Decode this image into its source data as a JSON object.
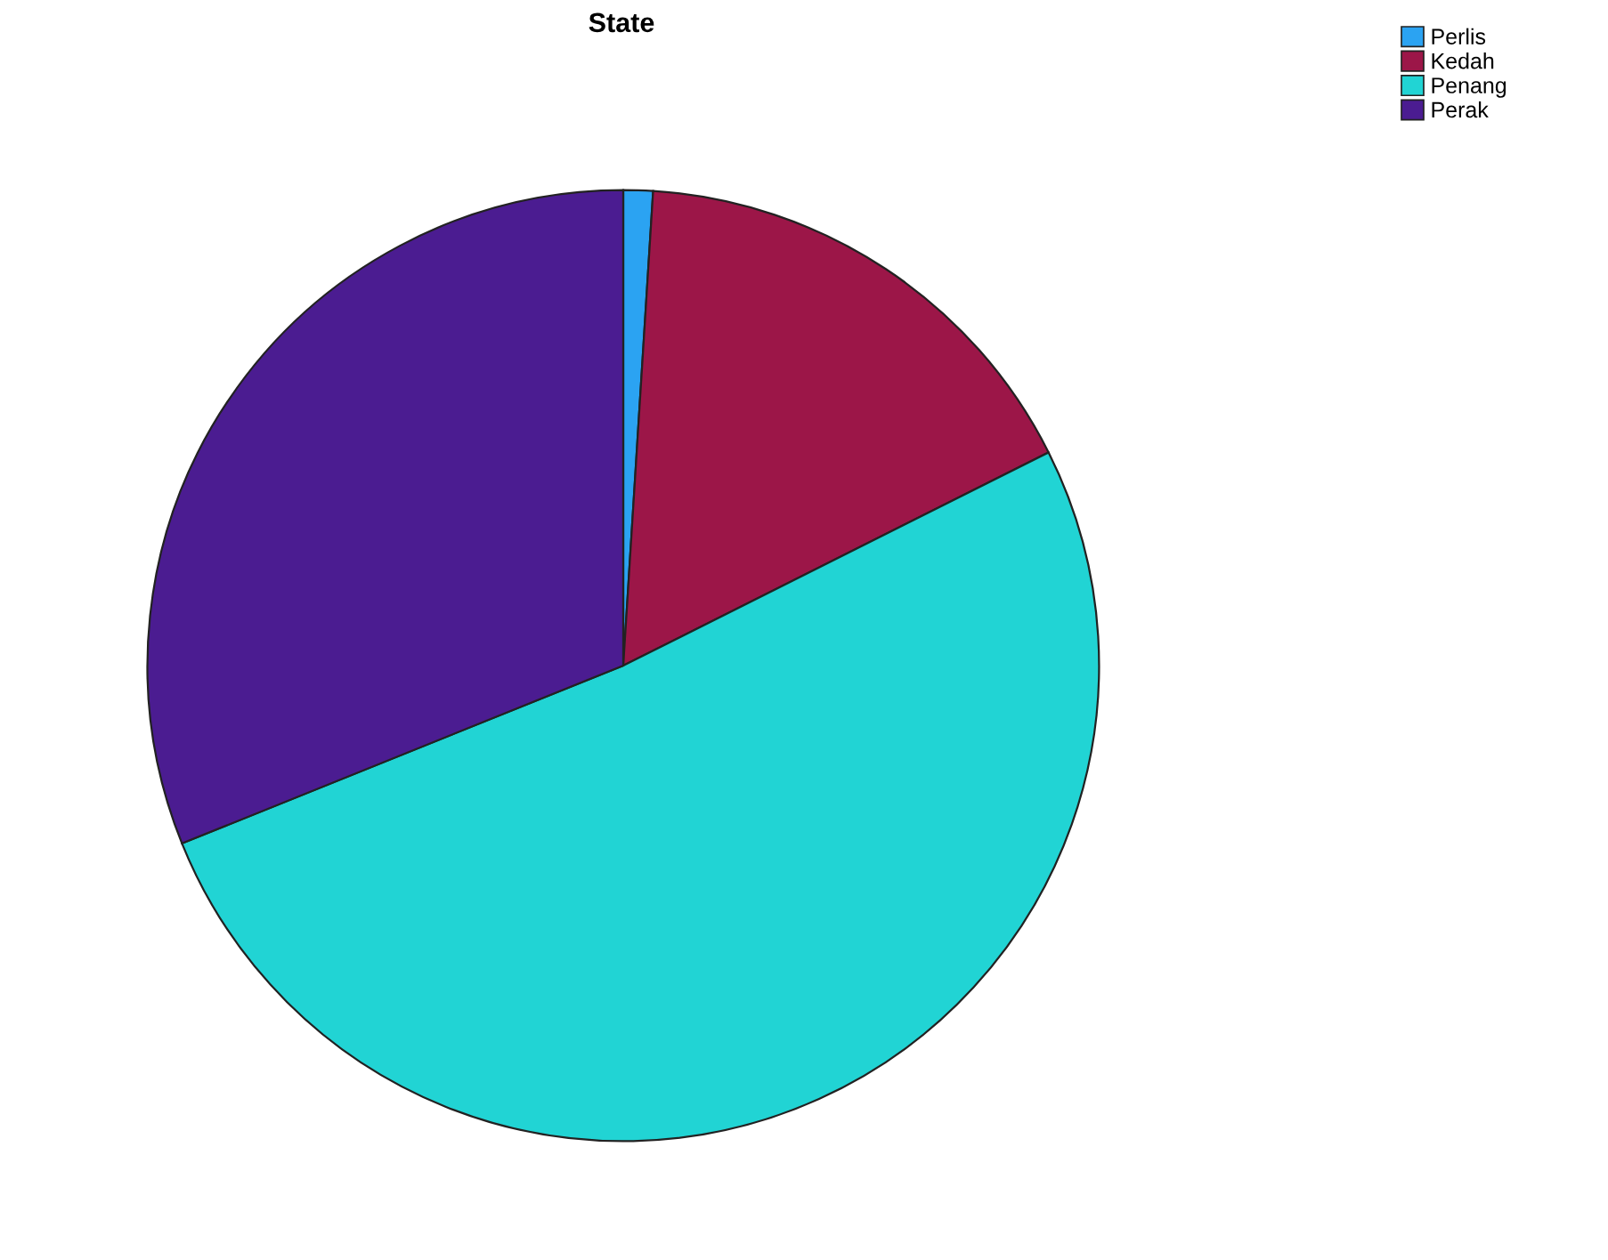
{
  "chart_data": {
    "type": "pie",
    "title": "State",
    "categories": [
      "Perlis",
      "Kedah",
      "Penang",
      "Perak"
    ],
    "values": [
      1.0,
      16.6,
      51.3,
      31.1
    ],
    "colors": [
      "#2ba3f2",
      "#9c1648",
      "#21d4d4",
      "#4b1c91"
    ],
    "legend": "top right"
  }
}
